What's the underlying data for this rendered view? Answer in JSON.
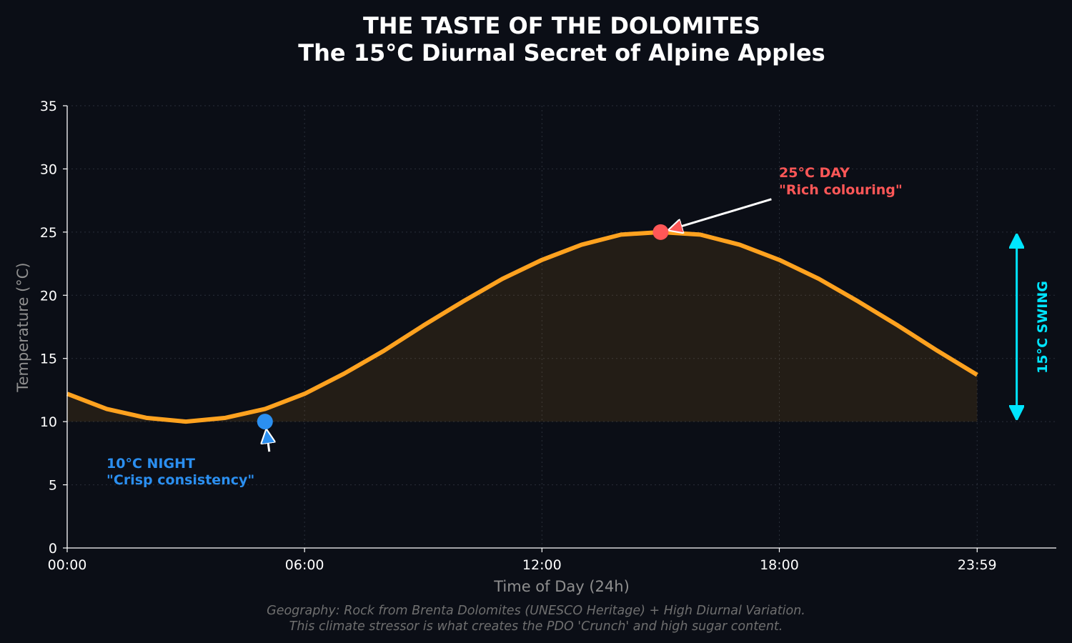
{
  "chart_data": {
    "type": "line",
    "title_line1": "THE TASTE OF THE DOLOMITES",
    "title_line2": "The 15°C Diurnal Secret of Alpine Apples",
    "xlabel": "Time of Day (24h)",
    "ylabel": "Temperature (°C)",
    "xlim": [
      0,
      25
    ],
    "ylim": [
      0,
      35
    ],
    "x_ticks": [
      {
        "value": 0,
        "label": "00:00"
      },
      {
        "value": 6,
        "label": "06:00"
      },
      {
        "value": 12,
        "label": "12:00"
      },
      {
        "value": 18,
        "label": "18:00"
      },
      {
        "value": 23.0,
        "label": "23:59"
      }
    ],
    "y_ticks": [
      0,
      5,
      10,
      15,
      20,
      25,
      30,
      35
    ],
    "grid": true,
    "series": [
      {
        "color": "#ffa21f",
        "x": [
          0,
          1,
          2,
          3,
          4,
          5,
          6,
          7,
          8,
          9,
          10,
          11,
          12,
          13,
          14,
          15,
          16,
          17,
          18,
          19,
          20,
          21,
          22,
          23
        ],
        "values": [
          12.2,
          11.0,
          10.3,
          10.0,
          10.3,
          11.0,
          12.2,
          13.8,
          15.6,
          17.6,
          19.5,
          21.3,
          22.8,
          24.0,
          24.8,
          25.0,
          24.8,
          24.0,
          22.8,
          21.3,
          19.5,
          17.6,
          15.6,
          13.7
        ]
      }
    ],
    "fill_baseline": 10,
    "annotations": {
      "night": {
        "x": 5,
        "y": 10,
        "line1": "10°C NIGHT",
        "line2": "\"Crisp consistency\"",
        "color": "#2b8ff0"
      },
      "day": {
        "x": 15,
        "y": 25,
        "line1": "25°C DAY",
        "line2": "\"Rich colouring\"",
        "color": "#ff5757"
      },
      "swing": {
        "from": 10,
        "to": 25,
        "x": 24.0,
        "label": "15°C SWING",
        "color": "#00e5ff"
      }
    },
    "footnote_line1": "Geography: Rock from Brenta Dolomites (UNESCO Heritage) + High Diurnal Variation.",
    "footnote_line2": "This climate stressor is what creates the PDO 'Crunch' and high sugar content."
  }
}
